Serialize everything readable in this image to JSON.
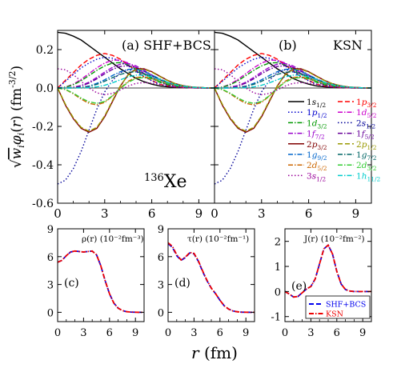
{
  "figure": {
    "xlabel": "r (fm)",
    "top_ylabel": "√w_i φ_i(r) (fm^-3/2)",
    "nucleus": "136Xe"
  },
  "chart_data": [
    {
      "id": "a",
      "type": "line",
      "panel_label": "(a) SHF+BCS",
      "xlim": [
        0,
        10
      ],
      "ylim": [
        -0.6,
        0.3
      ],
      "xticks": [
        0,
        3,
        6,
        9
      ],
      "yticks": [
        -0.6,
        -0.4,
        -0.2,
        0.0,
        0.2
      ],
      "grid": false,
      "note": "Curves sampled on r = 0..10 fm step 0.5",
      "r": [
        0,
        0.5,
        1,
        1.5,
        2,
        2.5,
        3,
        3.5,
        4,
        4.5,
        5,
        5.5,
        6,
        6.5,
        7,
        7.5,
        8,
        8.5,
        9,
        9.5,
        10
      ],
      "series": [
        {
          "name": "1s1/2",
          "color": "#000000",
          "dash": "solid",
          "values": [
            0.29,
            0.285,
            0.27,
            0.25,
            0.22,
            0.19,
            0.16,
            0.13,
            0.1,
            0.075,
            0.05,
            0.033,
            0.02,
            0.011,
            0.006,
            0.003,
            0.0015,
            0.0007,
            0.0003,
            0.0001,
            0
          ]
        },
        {
          "name": "1p3/2",
          "color": "#ff0000",
          "dash": "dash",
          "values": [
            0,
            0.04,
            0.08,
            0.12,
            0.15,
            0.17,
            0.18,
            0.17,
            0.15,
            0.12,
            0.09,
            0.06,
            0.04,
            0.02,
            0.01,
            0.005,
            0.002,
            0.001,
            0,
            0,
            0
          ]
        },
        {
          "name": "1p1/2",
          "color": "#0000cc",
          "dash": "dot",
          "values": [
            0,
            0.035,
            0.07,
            0.105,
            0.13,
            0.15,
            0.16,
            0.155,
            0.14,
            0.115,
            0.085,
            0.06,
            0.037,
            0.02,
            0.01,
            0.005,
            0.002,
            0.001,
            0,
            0,
            0
          ]
        },
        {
          "name": "1d5/2",
          "color": "#cc00cc",
          "dash": "dashdot",
          "values": [
            0,
            0.005,
            0.02,
            0.045,
            0.075,
            0.105,
            0.13,
            0.145,
            0.145,
            0.13,
            0.105,
            0.078,
            0.052,
            0.031,
            0.017,
            0.008,
            0.004,
            0.002,
            0.001,
            0,
            0
          ]
        },
        {
          "name": "1d3/2",
          "color": "#009900",
          "dash": "dashdot",
          "values": [
            0,
            0.004,
            0.017,
            0.038,
            0.065,
            0.092,
            0.115,
            0.13,
            0.132,
            0.12,
            0.098,
            0.073,
            0.05,
            0.03,
            0.017,
            0.008,
            0.004,
            0.002,
            0.001,
            0,
            0
          ]
        },
        {
          "name": "2s1/2",
          "color": "#000099",
          "dash": "dot",
          "values": [
            -0.5,
            -0.48,
            -0.42,
            -0.33,
            -0.22,
            -0.11,
            -0.02,
            0.04,
            0.08,
            0.095,
            0.09,
            0.075,
            0.055,
            0.036,
            0.021,
            0.011,
            0.005,
            0.002,
            0.001,
            0,
            0
          ]
        },
        {
          "name": "1f7/2",
          "color": "#9900cc",
          "dash": "dashdot",
          "values": [
            0,
            0.0006,
            0.004,
            0.013,
            0.03,
            0.055,
            0.083,
            0.108,
            0.124,
            0.127,
            0.115,
            0.093,
            0.068,
            0.045,
            0.027,
            0.015,
            0.008,
            0.004,
            0.002,
            0.001,
            0
          ]
        },
        {
          "name": "1f5/2",
          "color": "#660099",
          "dash": "dashdot",
          "values": [
            0,
            0.0005,
            0.0035,
            0.011,
            0.026,
            0.048,
            0.074,
            0.097,
            0.112,
            0.116,
            0.107,
            0.088,
            0.065,
            0.043,
            0.026,
            0.014,
            0.007,
            0.003,
            0.001,
            0,
            0
          ]
        },
        {
          "name": "2p3/2",
          "color": "#800000",
          "dash": "solid",
          "values": [
            0,
            -0.09,
            -0.16,
            -0.21,
            -0.23,
            -0.21,
            -0.15,
            -0.07,
            0.01,
            0.07,
            0.1,
            0.1,
            0.085,
            0.062,
            0.04,
            0.023,
            0.012,
            0.006,
            0.003,
            0.001,
            0
          ]
        },
        {
          "name": "2p1/2",
          "color": "#999900",
          "dash": "dash",
          "values": [
            0,
            -0.085,
            -0.155,
            -0.205,
            -0.225,
            -0.205,
            -0.145,
            -0.065,
            0.012,
            0.068,
            0.097,
            0.098,
            0.083,
            0.06,
            0.039,
            0.023,
            0.012,
            0.006,
            0.003,
            0.001,
            0
          ]
        },
        {
          "name": "1g9/2",
          "color": "#0066cc",
          "dash": "dashdot",
          "values": [
            0,
            0,
            0.0006,
            0.003,
            0.01,
            0.024,
            0.043,
            0.065,
            0.085,
            0.097,
            0.098,
            0.087,
            0.068,
            0.048,
            0.03,
            0.017,
            0.009,
            0.004,
            0.002,
            0.001,
            0
          ]
        },
        {
          "name": "1g7/2",
          "color": "#006666",
          "dash": "dashdot",
          "values": [
            0,
            0,
            0.0005,
            0.0025,
            0.008,
            0.019,
            0.035,
            0.054,
            0.071,
            0.082,
            0.084,
            0.076,
            0.061,
            0.044,
            0.029,
            0.017,
            0.009,
            0.004,
            0.002,
            0.001,
            0
          ]
        },
        {
          "name": "2d5/2",
          "color": "#cc6600",
          "dash": "dashdot",
          "values": [
            0,
            -0.008,
            -0.03,
            -0.058,
            -0.08,
            -0.088,
            -0.075,
            -0.042,
            0,
            0.035,
            0.055,
            0.058,
            0.05,
            0.037,
            0.025,
            0.015,
            0.008,
            0.004,
            0.002,
            0.001,
            0
          ]
        },
        {
          "name": "2d3/2",
          "color": "#33cc33",
          "dash": "dashdot",
          "values": [
            0,
            -0.007,
            -0.027,
            -0.052,
            -0.072,
            -0.08,
            -0.07,
            -0.04,
            -0.002,
            0.03,
            0.05,
            0.054,
            0.047,
            0.035,
            0.023,
            0.014,
            0.008,
            0.004,
            0.002,
            0.001,
            0
          ]
        },
        {
          "name": "3s1/2",
          "color": "#990099",
          "dash": "dot",
          "values": [
            0.1,
            0.095,
            0.07,
            0.035,
            0.0,
            -0.025,
            -0.035,
            -0.028,
            -0.01,
            0.01,
            0.024,
            0.028,
            0.025,
            0.018,
            0.012,
            0.007,
            0.004,
            0.002,
            0.001,
            0,
            0
          ]
        },
        {
          "name": "1h11/2",
          "color": "#00cccc",
          "dash": "dashdot",
          "values": [
            0,
            0,
            0,
            0.0004,
            0.002,
            0.006,
            0.014,
            0.027,
            0.043,
            0.058,
            0.067,
            0.067,
            0.058,
            0.044,
            0.03,
            0.018,
            0.01,
            0.005,
            0.002,
            0.001,
            0
          ]
        }
      ]
    },
    {
      "id": "b",
      "type": "line",
      "panel_label": "(b)",
      "model_label": "KSN",
      "xlim": [
        0,
        10
      ],
      "ylim": [
        -0.6,
        0.3
      ],
      "xticks": [
        0,
        3,
        6,
        9
      ],
      "yticks": [
        -0.6,
        -0.4,
        -0.2,
        0.0,
        0.2
      ],
      "grid": false,
      "same_as": "a"
    },
    {
      "id": "c",
      "type": "line",
      "panel_label": "(c)",
      "quantity_label": "ρ(r) (10⁻²fm⁻³)",
      "xlim": [
        0,
        10
      ],
      "ylim": [
        -1,
        9
      ],
      "xticks": [
        0,
        3,
        6,
        9
      ],
      "yticks": [
        0,
        3,
        6,
        9
      ],
      "r": [
        0,
        0.5,
        1,
        1.5,
        2,
        2.5,
        3,
        3.5,
        4,
        4.5,
        5,
        5.5,
        6,
        6.5,
        7,
        7.5,
        8,
        8.5,
        9,
        9.5,
        10
      ],
      "series": [
        {
          "name": "SHF+BCS",
          "color": "#0000ee",
          "dash": "dash",
          "values": [
            5.4,
            5.6,
            6.1,
            6.5,
            6.6,
            6.55,
            6.5,
            6.55,
            6.6,
            6.2,
            5.0,
            3.4,
            2.0,
            1.0,
            0.45,
            0.18,
            0.07,
            0.03,
            0.01,
            0,
            0
          ]
        },
        {
          "name": "KSN",
          "color": "#ee0000",
          "dash": "dashdot",
          "values": [
            5.4,
            5.6,
            6.1,
            6.5,
            6.6,
            6.55,
            6.5,
            6.55,
            6.6,
            6.2,
            5.0,
            3.4,
            2.0,
            1.0,
            0.45,
            0.18,
            0.07,
            0.03,
            0.01,
            0,
            0
          ]
        }
      ]
    },
    {
      "id": "d",
      "type": "line",
      "panel_label": "(d)",
      "quantity_label": "τ(r) (10⁻²fm⁻¹)",
      "xlim": [
        0,
        10
      ],
      "ylim": [
        -1,
        9
      ],
      "xticks": [
        0,
        3,
        6,
        9
      ],
      "yticks": [
        0,
        3,
        6,
        9
      ],
      "r": [
        0,
        0.5,
        1,
        1.5,
        2,
        2.5,
        3,
        3.5,
        4,
        4.5,
        5,
        5.5,
        6,
        6.5,
        7,
        7.5,
        8,
        8.5,
        9,
        9.5,
        10
      ],
      "series": [
        {
          "name": "SHF+BCS",
          "color": "#0000ee",
          "dash": "dash",
          "values": [
            7.4,
            7.0,
            6.1,
            5.6,
            5.9,
            6.4,
            6.3,
            5.5,
            4.4,
            3.4,
            2.6,
            2.0,
            1.3,
            0.7,
            0.35,
            0.15,
            0.06,
            0.02,
            0.01,
            0,
            0
          ]
        },
        {
          "name": "KSN",
          "color": "#ee0000",
          "dash": "dashdot",
          "values": [
            7.5,
            7.1,
            6.2,
            5.65,
            5.95,
            6.45,
            6.35,
            5.55,
            4.45,
            3.45,
            2.6,
            2.0,
            1.3,
            0.7,
            0.35,
            0.15,
            0.06,
            0.02,
            0.01,
            0,
            0
          ]
        }
      ]
    },
    {
      "id": "e",
      "type": "line",
      "panel_label": "(e)",
      "quantity_label": "J(r) (10⁻²fm⁻²)",
      "xlim": [
        0,
        10
      ],
      "ylim": [
        -1.2,
        2.5
      ],
      "xticks": [
        0,
        3,
        6,
        9
      ],
      "yticks": [
        -1,
        0,
        1,
        2
      ],
      "legend_position": "bottom-right",
      "r": [
        0,
        0.5,
        1,
        1.5,
        2,
        2.5,
        3,
        3.5,
        4,
        4.5,
        5,
        5.5,
        6,
        6.5,
        7,
        7.5,
        8,
        8.5,
        9,
        9.5,
        10
      ],
      "series": [
        {
          "name": "SHF+BCS",
          "color": "#0000ee",
          "dash": "dash",
          "values": [
            0,
            -0.1,
            -0.22,
            -0.2,
            -0.05,
            0.1,
            0.2,
            0.5,
            1.1,
            1.7,
            1.85,
            1.5,
            0.8,
            0.3,
            0.08,
            0.02,
            0,
            0,
            0,
            0,
            0
          ]
        },
        {
          "name": "KSN",
          "color": "#ee0000",
          "dash": "dashdot",
          "values": [
            0,
            -0.1,
            -0.22,
            -0.2,
            -0.05,
            0.1,
            0.2,
            0.5,
            1.1,
            1.7,
            1.85,
            1.5,
            0.8,
            0.3,
            0.08,
            0.02,
            0,
            0,
            0,
            0,
            0
          ]
        }
      ]
    }
  ]
}
